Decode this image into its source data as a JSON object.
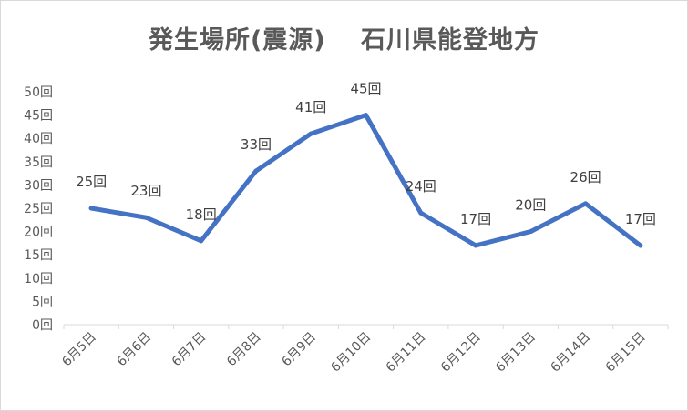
{
  "chart_data": {
    "type": "line",
    "title": "発生場所(震源)　 石川県能登地方",
    "categories": [
      "6月5日",
      "6月6日",
      "6月7日",
      "6月8日",
      "6月9日",
      "6月10日",
      "6月11日",
      "6月12日",
      "6月13日",
      "6月14日",
      "6月15日"
    ],
    "series": [
      {
        "values": [
          25,
          23,
          18,
          33,
          41,
          45,
          24,
          17,
          20,
          26,
          17
        ],
        "data_labels": [
          "25回",
          "23回",
          "18回",
          "33回",
          "41回",
          "45回",
          "24回",
          "17回",
          "20回",
          "26回",
          "17回"
        ],
        "color": "#4472c4"
      }
    ],
    "ylim": [
      0,
      50
    ],
    "yticks": [
      "0回",
      "5回",
      "10回",
      "15回",
      "20回",
      "25回",
      "30回",
      "35回",
      "40回",
      "45回",
      "50回"
    ],
    "grid": false,
    "legend": "none"
  }
}
